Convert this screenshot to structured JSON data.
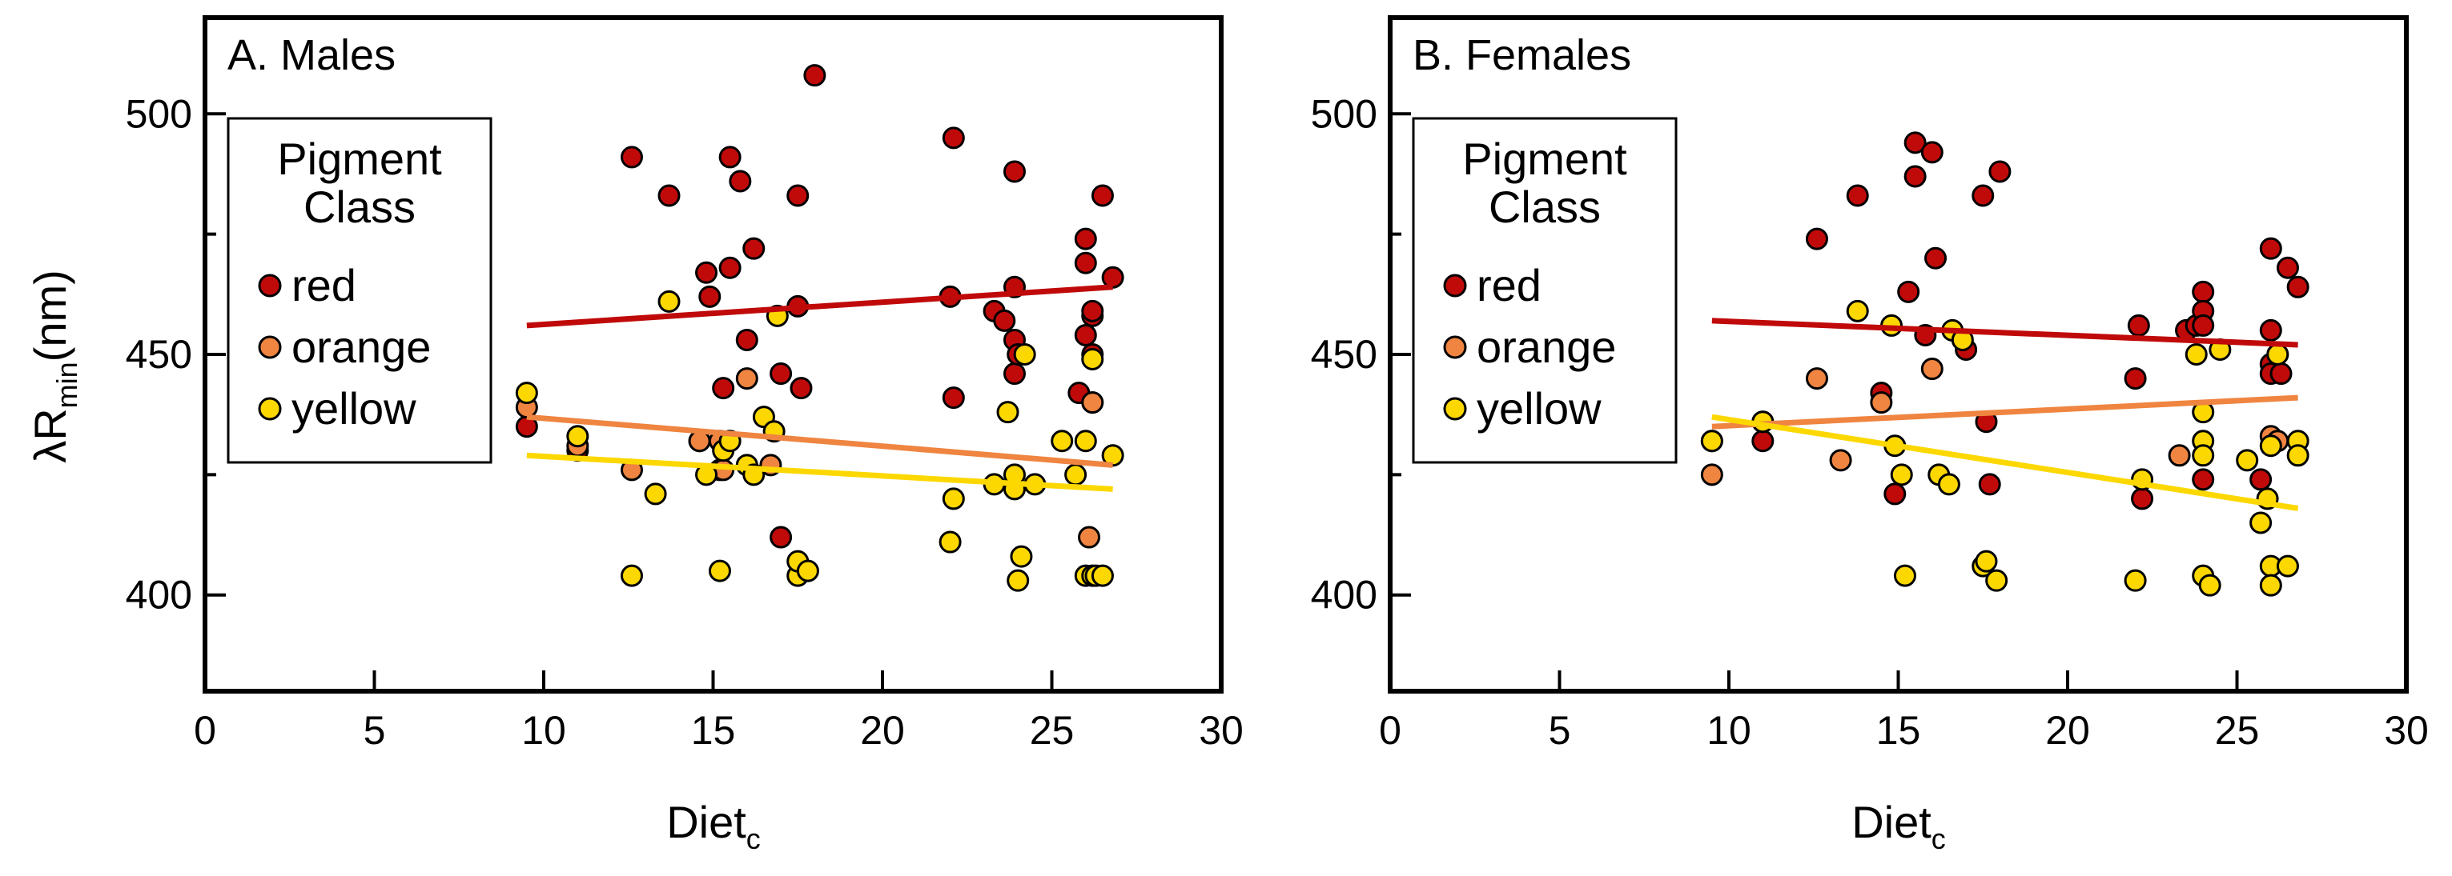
{
  "figure": {
    "ylabel_main": "λR",
    "ylabel_sub": "min",
    "ylabel_unit": "(nm)",
    "xlabel_main": "Diet",
    "xlabel_sub": "c",
    "legend_title_line1": "Pigment",
    "legend_title_line2": "Class"
  },
  "colors": {
    "red": "#c00a0a",
    "orange": "#ef8540",
    "yellow": "#fcd800"
  },
  "chart_data": [
    {
      "type": "scatter",
      "title": "A. Males",
      "xlabel": "Diet_c",
      "ylabel": "λR_min (nm)",
      "xlim": [
        0,
        30
      ],
      "ylim": [
        380,
        520
      ],
      "xticks": [
        0,
        5,
        10,
        15,
        20,
        25,
        30
      ],
      "yticks": [
        400,
        450,
        500
      ],
      "legend": {
        "title": "Pigment Class",
        "position": "upper-left"
      },
      "series": [
        {
          "name": "red",
          "points": [
            [
              9.5,
              435
            ],
            [
              11,
              430
            ],
            [
              12.6,
              491
            ],
            [
              13.7,
              483
            ],
            [
              14.6,
              432
            ],
            [
              14.8,
              467
            ],
            [
              14.9,
              462
            ],
            [
              15.2,
              426
            ],
            [
              15.3,
              443
            ],
            [
              15.5,
              491
            ],
            [
              15.5,
              468
            ],
            [
              15.8,
              486
            ],
            [
              16,
              453
            ],
            [
              16.2,
              472
            ],
            [
              17,
              446
            ],
            [
              17,
              412
            ],
            [
              17.5,
              460
            ],
            [
              17.5,
              483
            ],
            [
              17.6,
              443
            ],
            [
              18,
              508
            ],
            [
              22.1,
              495
            ],
            [
              22.1,
              441
            ],
            [
              22,
              462
            ],
            [
              23.3,
              459
            ],
            [
              23.6,
              457
            ],
            [
              23.9,
              488
            ],
            [
              23.9,
              464
            ],
            [
              23.9,
              453
            ],
            [
              23.9,
              446
            ],
            [
              24,
              450
            ],
            [
              25.8,
              442
            ],
            [
              26,
              469
            ],
            [
              26,
              474
            ],
            [
              26,
              454
            ],
            [
              26.2,
              458
            ],
            [
              26.2,
              450
            ],
            [
              26.2,
              459
            ],
            [
              26.2,
              440
            ],
            [
              26.5,
              483
            ],
            [
              26.8,
              466
            ]
          ],
          "trend": [
            [
              9.5,
              456
            ],
            [
              26.8,
              464
            ]
          ]
        },
        {
          "name": "orange",
          "points": [
            [
              9.5,
              439
            ],
            [
              11,
              431
            ],
            [
              12.6,
              426
            ],
            [
              14.6,
              432
            ],
            [
              15.2,
              432
            ],
            [
              15.3,
              426
            ],
            [
              16,
              445
            ],
            [
              16.7,
              427
            ],
            [
              26.2,
              440
            ],
            [
              26.1,
              412
            ]
          ],
          "trend": [
            [
              9.5,
              437
            ],
            [
              26.8,
              427
            ]
          ]
        },
        {
          "name": "yellow",
          "points": [
            [
              9.5,
              442
            ],
            [
              11,
              433
            ],
            [
              12.6,
              404
            ],
            [
              13.3,
              421
            ],
            [
              13.7,
              461
            ],
            [
              14.8,
              425
            ],
            [
              15.2,
              405
            ],
            [
              15.3,
              430
            ],
            [
              15.5,
              432
            ],
            [
              16,
              427
            ],
            [
              16.2,
              425
            ],
            [
              16.5,
              437
            ],
            [
              16.8,
              434
            ],
            [
              16.9,
              458
            ],
            [
              17.5,
              404
            ],
            [
              17.5,
              407
            ],
            [
              17.8,
              405
            ],
            [
              22,
              411
            ],
            [
              22.1,
              420
            ],
            [
              23.3,
              423
            ],
            [
              23.7,
              438
            ],
            [
              23.9,
              422
            ],
            [
              23.9,
              425
            ],
            [
              24.1,
              408
            ],
            [
              24.2,
              450
            ],
            [
              24,
              403
            ],
            [
              25.3,
              432
            ],
            [
              25.7,
              425
            ],
            [
              26,
              432
            ],
            [
              26,
              404
            ],
            [
              26.2,
              404
            ],
            [
              26.2,
              449
            ],
            [
              26.3,
              404
            ],
            [
              26.5,
              404
            ],
            [
              26.8,
              429
            ],
            [
              24.5,
              423
            ]
          ],
          "trend": [
            [
              9.5,
              429
            ],
            [
              26.8,
              422
            ]
          ]
        }
      ]
    },
    {
      "type": "scatter",
      "title": "B. Females",
      "xlabel": "Diet_c",
      "ylabel": "λR_min (nm)",
      "xlim": [
        0,
        30
      ],
      "ylim": [
        380,
        520
      ],
      "xticks": [
        0,
        5,
        10,
        15,
        20,
        25,
        30
      ],
      "yticks": [
        400,
        450,
        500
      ],
      "legend": {
        "title": "Pigment Class",
        "position": "upper-left"
      },
      "series": [
        {
          "name": "red",
          "points": [
            [
              9.5,
              432
            ],
            [
              11,
              432
            ],
            [
              12.6,
              474
            ],
            [
              13.8,
              483
            ],
            [
              14.5,
              442
            ],
            [
              14.9,
              421
            ],
            [
              15.3,
              463
            ],
            [
              15.5,
              494
            ],
            [
              15.5,
              487
            ],
            [
              15.8,
              454
            ],
            [
              16,
              492
            ],
            [
              16.1,
              470
            ],
            [
              17,
              451
            ],
            [
              17.5,
              483
            ],
            [
              17.6,
              436
            ],
            [
              17.7,
              423
            ],
            [
              18,
              488
            ],
            [
              22,
              445
            ],
            [
              22.1,
              456
            ],
            [
              22.2,
              420
            ],
            [
              23.5,
              455
            ],
            [
              23.8,
              456
            ],
            [
              24,
              463
            ],
            [
              24,
              459
            ],
            [
              24,
              456
            ],
            [
              24,
              424
            ],
            [
              25.7,
              424
            ],
            [
              26,
              472
            ],
            [
              26,
              455
            ],
            [
              26,
              448
            ],
            [
              26,
              446
            ],
            [
              26.2,
              450
            ],
            [
              26.3,
              446
            ],
            [
              26.5,
              468
            ],
            [
              26.8,
              464
            ]
          ],
          "trend": [
            [
              9.5,
              457
            ],
            [
              26.8,
              452
            ]
          ]
        },
        {
          "name": "orange",
          "points": [
            [
              9.5,
              425
            ],
            [
              11,
              436
            ],
            [
              12.6,
              445
            ],
            [
              13.3,
              428
            ],
            [
              14.5,
              440
            ],
            [
              16,
              447
            ],
            [
              23.3,
              429
            ],
            [
              26,
              433
            ],
            [
              26.2,
              432
            ]
          ],
          "trend": [
            [
              9.5,
              435
            ],
            [
              26.8,
              441
            ]
          ]
        },
        {
          "name": "yellow",
          "points": [
            [
              9.5,
              432
            ],
            [
              11,
              436
            ],
            [
              13.8,
              459
            ],
            [
              14.8,
              456
            ],
            [
              14.9,
              431
            ],
            [
              15.1,
              425
            ],
            [
              15.2,
              404
            ],
            [
              16.2,
              425
            ],
            [
              16.5,
              423
            ],
            [
              16.6,
              455
            ],
            [
              16.9,
              453
            ],
            [
              17.5,
              406
            ],
            [
              17.6,
              407
            ],
            [
              17.9,
              403
            ],
            [
              22,
              403
            ],
            [
              22.2,
              424
            ],
            [
              23.8,
              450
            ],
            [
              24,
              438
            ],
            [
              24,
              432
            ],
            [
              24,
              429
            ],
            [
              24,
              404
            ],
            [
              24.2,
              402
            ],
            [
              24.5,
              451
            ],
            [
              25.3,
              428
            ],
            [
              25.7,
              415
            ],
            [
              25.9,
              420
            ],
            [
              26,
              406
            ],
            [
              26,
              402
            ],
            [
              26,
              431
            ],
            [
              26.2,
              450
            ],
            [
              26.5,
              406
            ],
            [
              26.8,
              432
            ],
            [
              26.8,
              429
            ]
          ],
          "trend": [
            [
              9.5,
              437
            ],
            [
              26.8,
              418
            ]
          ]
        }
      ]
    }
  ]
}
